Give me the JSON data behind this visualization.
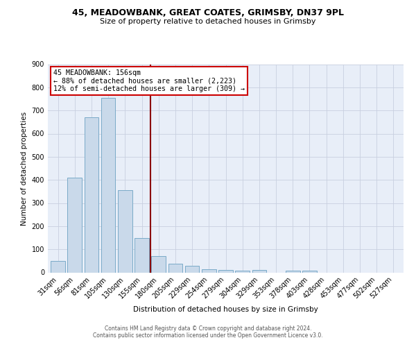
{
  "title1": "45, MEADOWBANK, GREAT COATES, GRIMSBY, DN37 9PL",
  "title2": "Size of property relative to detached houses in Grimsby",
  "xlabel": "Distribution of detached houses by size in Grimsby",
  "ylabel": "Number of detached properties",
  "bar_labels": [
    "31sqm",
    "56sqm",
    "81sqm",
    "105sqm",
    "130sqm",
    "155sqm",
    "180sqm",
    "205sqm",
    "229sqm",
    "254sqm",
    "279sqm",
    "304sqm",
    "329sqm",
    "353sqm",
    "378sqm",
    "403sqm",
    "428sqm",
    "453sqm",
    "477sqm",
    "502sqm",
    "527sqm"
  ],
  "bar_values": [
    50,
    410,
    670,
    755,
    355,
    150,
    70,
    37,
    30,
    15,
    10,
    8,
    10,
    0,
    8,
    8,
    0,
    0,
    0,
    0,
    0
  ],
  "bar_color": "#c9d9ea",
  "bar_edge_color": "#7aaac8",
  "red_line_index": 5,
  "annotation_line1": "45 MEADOWBANK: 156sqm",
  "annotation_line2": "← 88% of detached houses are smaller (2,223)",
  "annotation_line3": "12% of semi-detached houses are larger (309) →",
  "ylim": [
    0,
    900
  ],
  "yticks": [
    0,
    100,
    200,
    300,
    400,
    500,
    600,
    700,
    800,
    900
  ],
  "bg_color": "#e8eef8",
  "grid_color": "#c8d0e0",
  "footer_text1": "Contains HM Land Registry data © Crown copyright and database right 2024.",
  "footer_text2": "Contains public sector information licensed under the Open Government Licence v3.0."
}
